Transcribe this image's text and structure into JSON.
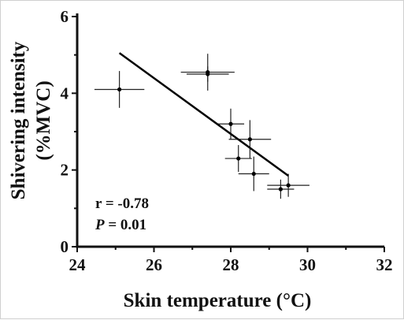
{
  "chart_data": {
    "type": "scatter",
    "xlabel": "Skin temperature  (°C)",
    "ylabel_line1": "Shivering intensity",
    "ylabel_line2": "(%MVC)",
    "xlim": [
      24,
      32
    ],
    "ylim": [
      0,
      6
    ],
    "x_ticks": [
      "24",
      "26",
      "28",
      "30",
      "32"
    ],
    "y_ticks": [
      "0",
      "2",
      "4",
      "6"
    ],
    "points": [
      {
        "x": 25.1,
        "y": 4.1,
        "xerr": 0.65,
        "yerr": 0.48
      },
      {
        "x": 27.4,
        "y": 4.55,
        "xerr": 0.7,
        "yerr": 0.48
      },
      {
        "x": 27.4,
        "y": 4.5,
        "xerr": 0.55,
        "yerr": 0.2
      },
      {
        "x": 28.0,
        "y": 3.2,
        "xerr": 0.35,
        "yerr": 0.4
      },
      {
        "x": 28.2,
        "y": 2.3,
        "xerr": 0.35,
        "yerr": 0.35
      },
      {
        "x": 28.5,
        "y": 2.8,
        "xerr": 0.55,
        "yerr": 0.5
      },
      {
        "x": 28.6,
        "y": 1.9,
        "xerr": 0.4,
        "yerr": 0.45
      },
      {
        "x": 29.3,
        "y": 1.5,
        "xerr": 0.35,
        "yerr": 0.25
      },
      {
        "x": 29.5,
        "y": 1.6,
        "xerr": 0.55,
        "yerr": 0.3
      }
    ],
    "fit_line": {
      "x": [
        25.1,
        29.5
      ],
      "y": [
        5.05,
        1.85
      ]
    },
    "annotation_r": "r = -0.78",
    "annotation_p_italic": "P",
    "annotation_p_rest": " = 0.01",
    "grid": false
  }
}
